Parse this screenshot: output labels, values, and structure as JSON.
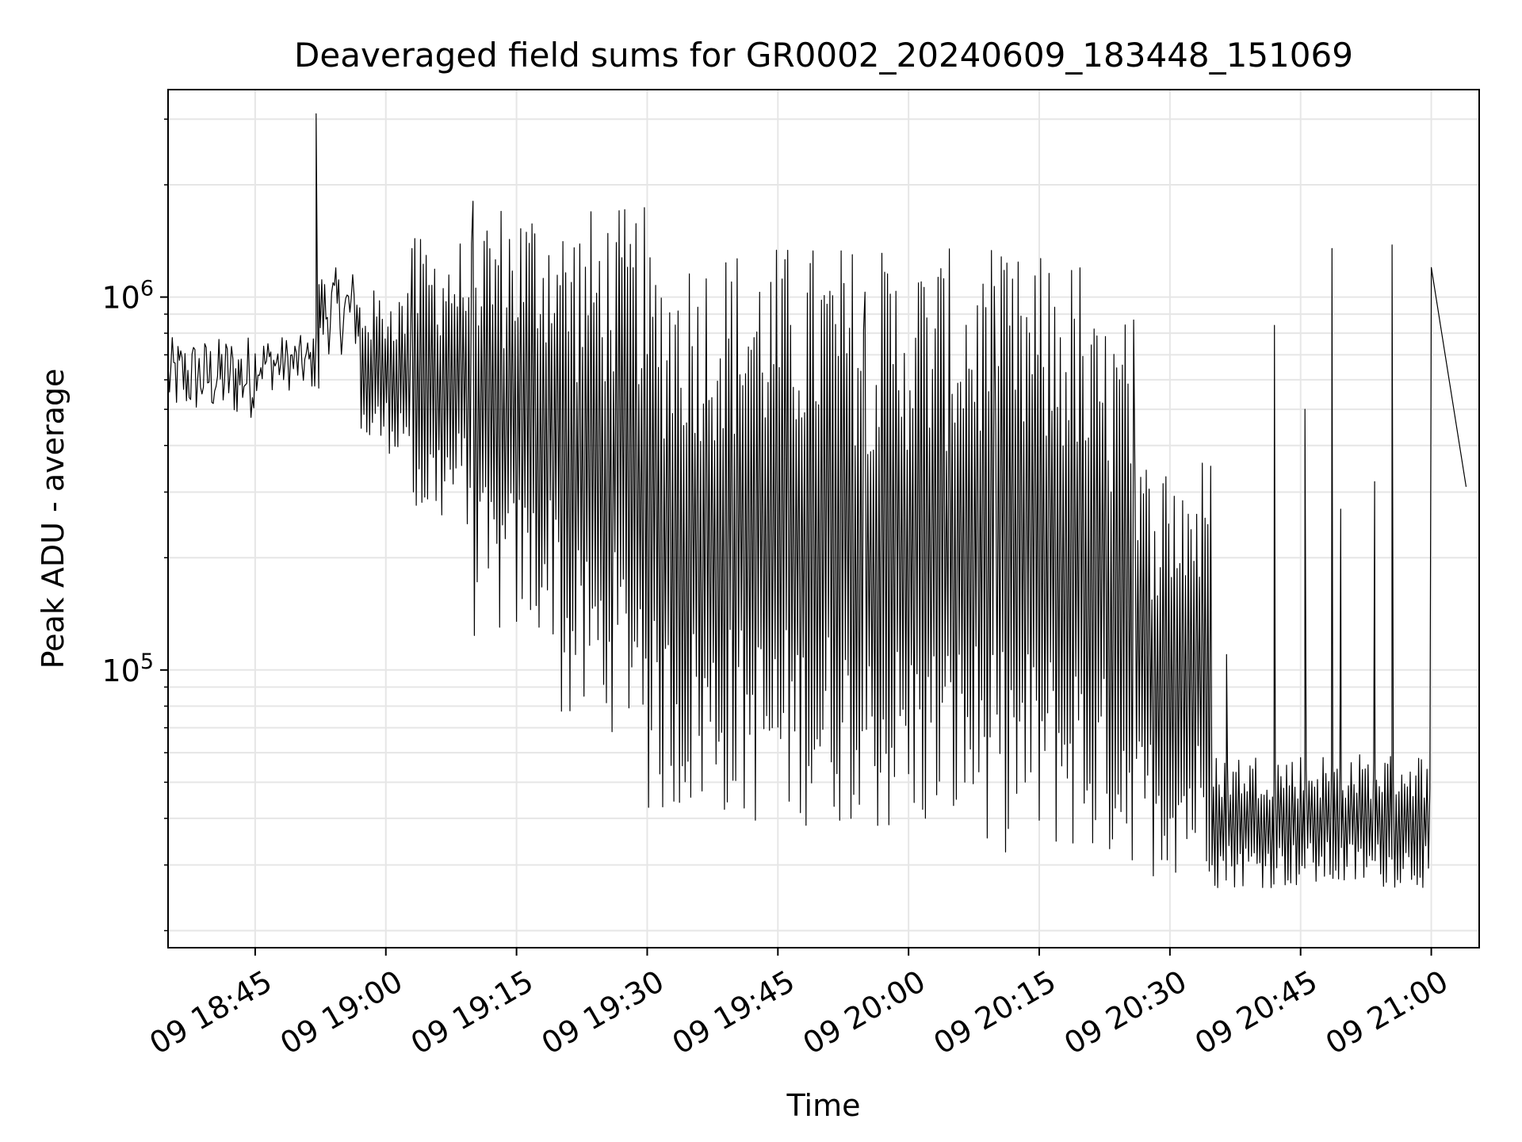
{
  "chart_data": {
    "type": "line",
    "title": "Deaveraged field sums for GR0002_20240609_183448_151069",
    "xlabel": "Time",
    "ylabel": "Peak ADU - average",
    "x_unit": "minutes",
    "xlim": [
      "18:35",
      "21:00"
    ],
    "ylim": [
      18000,
      3600000
    ],
    "yscale": "log",
    "grid": true,
    "grid_minor_y": true,
    "line_color": "#000000",
    "x_ticks": [
      {
        "t": "18:45",
        "label": "09 18:45"
      },
      {
        "t": "19:00",
        "label": "09 19:00"
      },
      {
        "t": "19:15",
        "label": "09 19:15"
      },
      {
        "t": "19:30",
        "label": "09 19:30"
      },
      {
        "t": "19:45",
        "label": "09 19:45"
      },
      {
        "t": "20:00",
        "label": "09 20:00"
      },
      {
        "t": "20:15",
        "label": "09 20:15"
      },
      {
        "t": "20:30",
        "label": "09 20:30"
      },
      {
        "t": "20:45",
        "label": "09 20:45"
      },
      {
        "t": "21:00",
        "label": "09 21:00"
      }
    ],
    "y_ticks": [
      {
        "value": 100000,
        "base": "10",
        "exp": "5"
      },
      {
        "value": 1000000,
        "base": "10",
        "exp": "6"
      }
    ],
    "series": [
      {
        "segments": [
          {
            "t0": "18:35",
            "t1": "18:41",
            "lo": 480000,
            "hi": 780000
          },
          {
            "t0": "18:41",
            "t1": "18:45",
            "lo": 470000,
            "hi": 800000
          },
          {
            "t0": "18:45",
            "t1": "18:52",
            "lo": 560000,
            "hi": 790000
          },
          {
            "t0": "18:52",
            "t1": "18:57",
            "lo": 700000,
            "hi": 1200000
          },
          {
            "t0": "18:57",
            "t1": "19:03",
            "lo": 380000,
            "hi": 1050000
          },
          {
            "t0": "19:03",
            "t1": "19:10",
            "lo": 240000,
            "hi": 1450000
          },
          {
            "t0": "19:10",
            "t1": "19:20",
            "lo": 120000,
            "hi": 1850000
          },
          {
            "t0": "19:20",
            "t1": "19:30",
            "lo": 68000,
            "hi": 1750000
          },
          {
            "t0": "19:30",
            "t1": "19:40",
            "lo": 40000,
            "hi": 1400000
          },
          {
            "t0": "19:40",
            "t1": "19:55",
            "lo": 38000,
            "hi": 1400000
          },
          {
            "t0": "19:55",
            "t1": "20:10",
            "lo": 35000,
            "hi": 1350000
          },
          {
            "t0": "20:10",
            "t1": "20:20",
            "lo": 32000,
            "hi": 1300000
          },
          {
            "t0": "20:20",
            "t1": "20:26",
            "lo": 30000,
            "hi": 900000
          },
          {
            "t0": "20:26",
            "t1": "20:35",
            "lo": 28000,
            "hi": 380000
          },
          {
            "t0": "20:35",
            "t1": "21:00",
            "lo": 26000,
            "hi": 60000
          }
        ],
        "events": [
          {
            "t": "18:52",
            "value": 3100000
          },
          {
            "t": "18:52.3",
            "value": 570000
          },
          {
            "t": "20:36.5",
            "value": 110000
          },
          {
            "t": "20:42",
            "value": 840000
          },
          {
            "t": "20:45.5",
            "value": 500000
          },
          {
            "t": "20:48.6",
            "value": 1350000
          },
          {
            "t": "20:49.6",
            "value": 270000
          },
          {
            "t": "20:53.5",
            "value": 320000
          },
          {
            "t": "20:55.5",
            "value": 1380000
          },
          {
            "t": "21:00",
            "value": 1200000
          },
          {
            "t": "21:04",
            "value": 310000
          }
        ]
      }
    ]
  }
}
